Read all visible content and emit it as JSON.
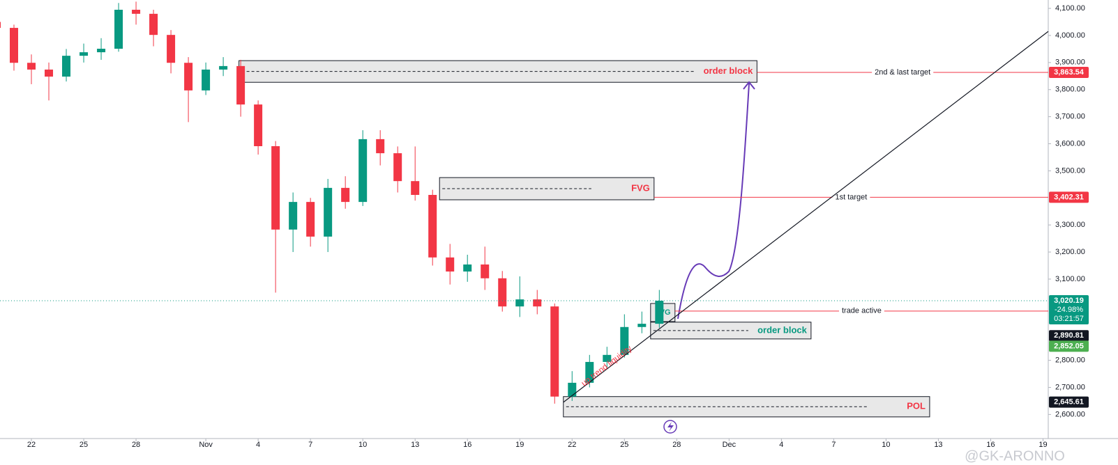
{
  "chart_data": {
    "type": "candlestick",
    "x": [
      20,
      21,
      22,
      23,
      24,
      25,
      26,
      27,
      28,
      29,
      30,
      31,
      32,
      33,
      34,
      35,
      36,
      37,
      38,
      39,
      40,
      41,
      42,
      43,
      44,
      45,
      46,
      47,
      48,
      49,
      50,
      51,
      52,
      53,
      54,
      55,
      56,
      57,
      58
    ],
    "open": [
      4050,
      4028,
      3899,
      3874,
      3848,
      3925,
      3938,
      3951,
      4095,
      4080,
      4002,
      3899,
      3797,
      3874,
      3887,
      3745,
      3591,
      3283,
      3385,
      3257,
      3437,
      3385,
      3617,
      3565,
      3462,
      3411,
      3180,
      3128,
      3154,
      3103,
      2999,
      3025,
      2999,
      2666,
      2717,
      2794,
      2820,
      2923,
      2935
    ],
    "high": [
      4070,
      4040,
      3930,
      3900,
      3950,
      3970,
      3990,
      4120,
      4125,
      4095,
      4020,
      3920,
      3900,
      3920,
      3910,
      3760,
      3610,
      3420,
      3400,
      3470,
      3480,
      3650,
      3650,
      3590,
      3590,
      3430,
      3230,
      3190,
      3220,
      3130,
      3110,
      3060,
      3010,
      2760,
      2820,
      2850,
      2970,
      2980,
      3060
    ],
    "low": [
      4000,
      3870,
      3820,
      3760,
      3830,
      3900,
      3910,
      3940,
      4040,
      3960,
      3860,
      3680,
      3780,
      3850,
      3700,
      3560,
      3050,
      3200,
      3220,
      3200,
      3360,
      3370,
      3520,
      3420,
      3390,
      3150,
      3080,
      3090,
      3060,
      2980,
      2960,
      2970,
      2640,
      2650,
      2700,
      2770,
      2810,
      2900,
      2920
    ],
    "close": [
      4028,
      3899,
      3874,
      3848,
      3925,
      3938,
      3951,
      4095,
      4080,
      4002,
      3899,
      3797,
      3874,
      3887,
      3745,
      3591,
      3283,
      3385,
      3257,
      3437,
      3385,
      3617,
      3565,
      3462,
      3411,
      3180,
      3128,
      3154,
      3103,
      2999,
      3025,
      2999,
      2666,
      2717,
      2794,
      2820,
      2923,
      2935,
      3020.19
    ],
    "up_color": "#089981",
    "down_color": "#f23645",
    "xlim": [
      20.2,
      80.3
    ],
    "xticks": [
      22,
      25,
      28,
      {
        "value": 32,
        "label": "Nov"
      },
      {
        "value": 35,
        "label": "4"
      },
      {
        "value": 38,
        "label": "7"
      },
      {
        "value": 41,
        "label": "10"
      },
      {
        "value": 44,
        "label": "13"
      },
      {
        "value": 47,
        "label": "16"
      },
      {
        "value": 50,
        "label": "19"
      },
      {
        "value": 53,
        "label": "22"
      },
      {
        "value": 56,
        "label": "25"
      },
      {
        "value": 59,
        "label": "28"
      },
      {
        "value": 62,
        "label": "Dec"
      },
      {
        "value": 65,
        "label": "4"
      },
      {
        "value": 68,
        "label": "7"
      },
      {
        "value": 71,
        "label": "10"
      },
      {
        "value": 74,
        "label": "13"
      },
      {
        "value": 77,
        "label": "16"
      },
      {
        "value": 80,
        "label": "19"
      }
    ],
    "ylim": [
      2511,
      4131
    ],
    "yticks": [
      {
        "value": 4100,
        "label": "4,100.00"
      },
      {
        "value": 4000,
        "label": "4,000.00"
      },
      {
        "value": 3900,
        "label": "3,900.00"
      },
      {
        "value": 3800,
        "label": "3,800.00"
      },
      {
        "value": 3700,
        "label": "3,700.00"
      },
      {
        "value": 3600,
        "label": "3,600.00"
      },
      {
        "value": 3500,
        "label": "3,500.00"
      },
      {
        "value": 3300,
        "label": "3,300.00"
      },
      {
        "value": 3200,
        "label": "3,200.00"
      },
      {
        "value": 3100,
        "label": "3,100.00"
      },
      {
        "value": 2800,
        "label": "2,800.00"
      },
      {
        "value": 2700,
        "label": "2,700.00"
      },
      {
        "value": 2600,
        "label": "2,600.00"
      }
    ],
    "price_labels": [
      {
        "value": 3863.54,
        "label": "3,863.54",
        "color": "#f23645"
      },
      {
        "value": 3402.31,
        "label": "3,402.31",
        "color": "#f23645"
      },
      {
        "value": 3020.19,
        "label": "3,020.19",
        "color": "#089981"
      },
      {
        "value": 2890.81,
        "label": "2,890.81",
        "color": "#131722"
      },
      {
        "value": 2852.05,
        "label": "2,852.05",
        "color": "#4caf50"
      },
      {
        "value": 2645.61,
        "label": "2,645.61",
        "color": "#131722"
      }
    ],
    "change": "-24.98%",
    "countdown": "03:21:57",
    "zones": [
      {
        "label": "order block",
        "color": "#f23645",
        "from": 33.9,
        "to": 63.6,
        "low": 3827,
        "high": 3907
      },
      {
        "label": "FVG",
        "color": "#f23645",
        "from": 45.4,
        "to": 57.7,
        "low": 3393,
        "high": 3475
      },
      {
        "label": "FVG",
        "color": "#089981",
        "from": 57.5,
        "to": 58.9,
        "low": 2943,
        "high": 3010
      },
      {
        "label": "order block",
        "color": "#089981",
        "from": 57.5,
        "to": 66.7,
        "low": 2879,
        "high": 2941
      },
      {
        "label": "POL",
        "color": "#f23645",
        "from": 52.5,
        "to": 73.5,
        "low": 2591,
        "high": 2666
      }
    ],
    "levels": [
      {
        "label": "2nd & last target",
        "value": 3863.54,
        "from": 63.6
      },
      {
        "label": "1st target",
        "value": 3402.31,
        "from": 57.7
      },
      {
        "label": "trade active",
        "value": 2982,
        "from": 58.9
      }
    ],
    "trendline": {
      "label": "up trend liquidity",
      "x": [
        52.5,
        80.3
      ],
      "values": [
        2645,
        4015
      ]
    },
    "watermark": "@GK-ARONNO"
  }
}
